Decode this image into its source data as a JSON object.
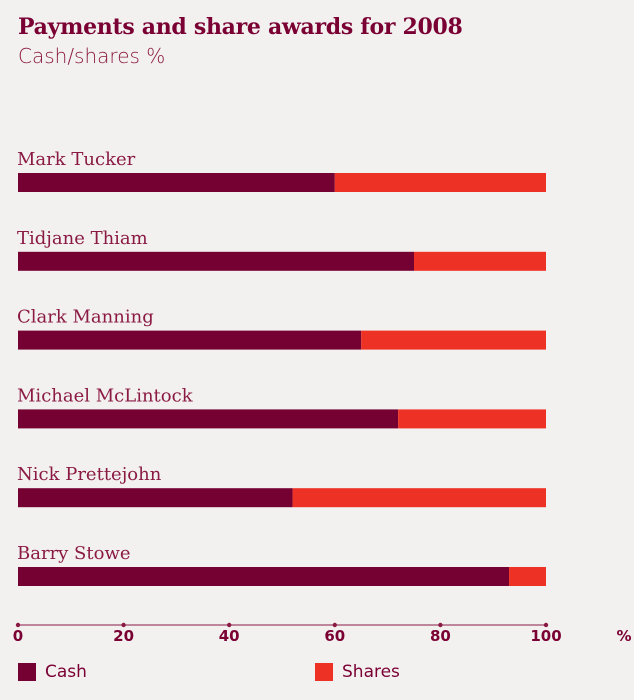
{
  "chart_data": {
    "type": "bar",
    "orientation": "horizontal",
    "stacked": true,
    "title": "Payments and share awards for 2008",
    "subtitle": "Cash/shares  %",
    "categories": [
      "Mark Tucker",
      "Tidjane Thiam",
      "Clark Manning",
      "Michael McLintock",
      "Nick Prettejohn",
      "Barry Stowe"
    ],
    "series": [
      {
        "name": "Cash",
        "color": "#750032",
        "values": [
          60,
          75,
          65,
          72,
          52,
          93
        ]
      },
      {
        "name": "Shares",
        "color": "#ee3125",
        "values": [
          40,
          25,
          35,
          28,
          48,
          7
        ]
      }
    ],
    "xlim": [
      0,
      100
    ],
    "xticks": [
      "0",
      "20",
      "40",
      "60",
      "80",
      "100"
    ],
    "x_unit": "%",
    "grid": false,
    "legend_position": "bottom"
  }
}
